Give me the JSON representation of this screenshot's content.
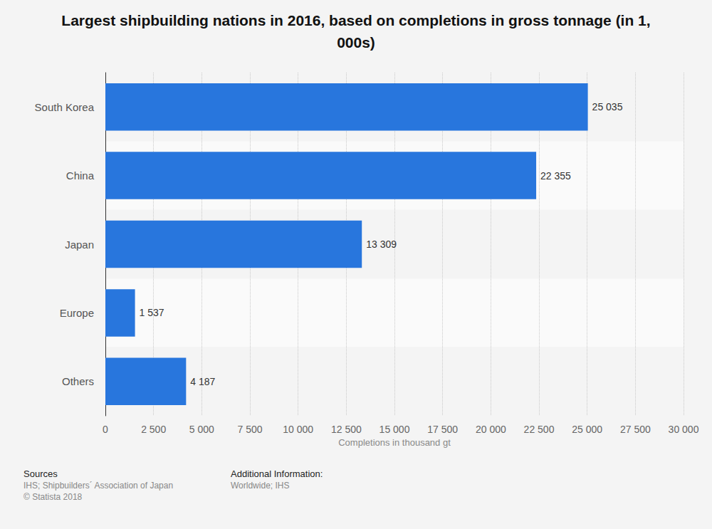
{
  "chart_data": {
    "type": "bar",
    "title": "Largest shipbuilding nations in 2016, based on completions in gross tonnage (in 1,000s)",
    "orientation": "horizontal",
    "categories": [
      "South Korea",
      "China",
      "Japan",
      "Europe",
      "Others"
    ],
    "values": [
      25035,
      22355,
      13309,
      1537,
      4187
    ],
    "value_labels": [
      "25 035",
      "22 355",
      "13 309",
      "1 537",
      "4 187"
    ],
    "data_labels": true,
    "color": "#2876dd",
    "xlabel": "Completions in thousand gt",
    "xlim": [
      0,
      30000
    ],
    "xticks": [
      0,
      {
        "value": 2500,
        "label": "2 500"
      },
      {
        "value": 5000,
        "label": "5 000"
      },
      {
        "value": 7500,
        "label": "7 500"
      },
      {
        "value": 10000,
        "label": "10 000"
      },
      {
        "value": 12500,
        "label": "12 500"
      },
      {
        "value": 15000,
        "label": "15 000"
      },
      {
        "value": 17500,
        "label": "17 500"
      },
      {
        "value": 20000,
        "label": "20 000"
      },
      {
        "value": 22500,
        "label": "22 500"
      },
      {
        "value": 25000,
        "label": "25 000"
      },
      {
        "value": 27500,
        "label": "27 500"
      },
      {
        "value": 30000,
        "label": "30 000"
      }
    ],
    "grid": true,
    "annotations": [
      "Sources",
      "IHS; Shipbuilders´ Association of Japan",
      "© Statista 2018",
      "Additional Information:",
      "Worldwide; IHS"
    ]
  }
}
